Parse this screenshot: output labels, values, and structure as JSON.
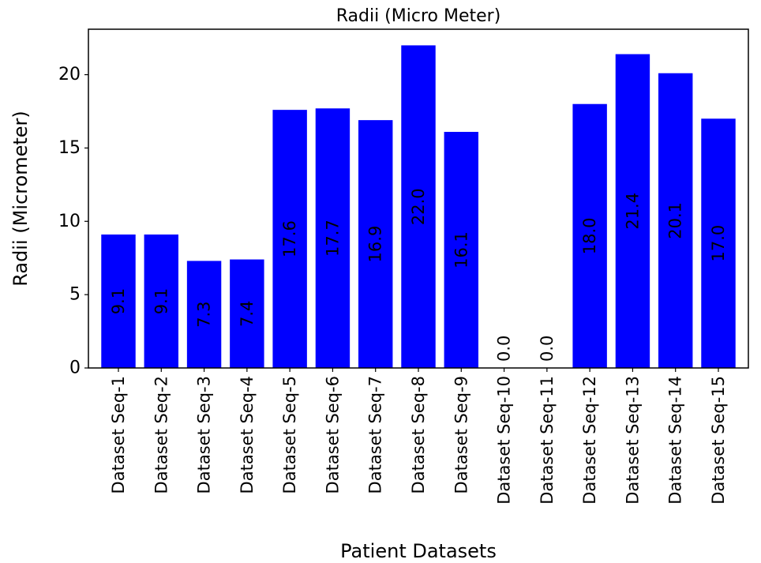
{
  "chart_data": {
    "type": "bar",
    "title": "Radii (Micro Meter)",
    "xlabel": "Patient Datasets",
    "ylabel": "Radii (Micrometer)",
    "categories": [
      "Dataset Seq-1",
      "Dataset Seq-2",
      "Dataset Seq-3",
      "Dataset Seq-4",
      "Dataset Seq-5",
      "Dataset Seq-6",
      "Dataset Seq-7",
      "Dataset Seq-8",
      "Dataset Seq-9",
      "Dataset Seq-10",
      "Dataset Seq-11",
      "Dataset Seq-12",
      "Dataset Seq-13",
      "Dataset Seq-14",
      "Dataset Seq-15"
    ],
    "values": [
      9.1,
      9.1,
      7.3,
      7.4,
      17.6,
      17.7,
      16.9,
      22.0,
      16.1,
      0.0,
      0.0,
      18.0,
      21.4,
      20.1,
      17.0
    ],
    "data_labels": [
      "9.1",
      "9.1",
      "7.3",
      "7.4",
      "17.6",
      "17.7",
      "16.9",
      "22.0",
      "16.1",
      "0.0",
      "0.0",
      "18.0",
      "21.4",
      "20.1",
      "17.0"
    ],
    "yticks": [
      0,
      5,
      10,
      15,
      20
    ],
    "ylim": [
      0,
      23.1
    ],
    "grid": false,
    "bar_color": "#0000ff"
  }
}
